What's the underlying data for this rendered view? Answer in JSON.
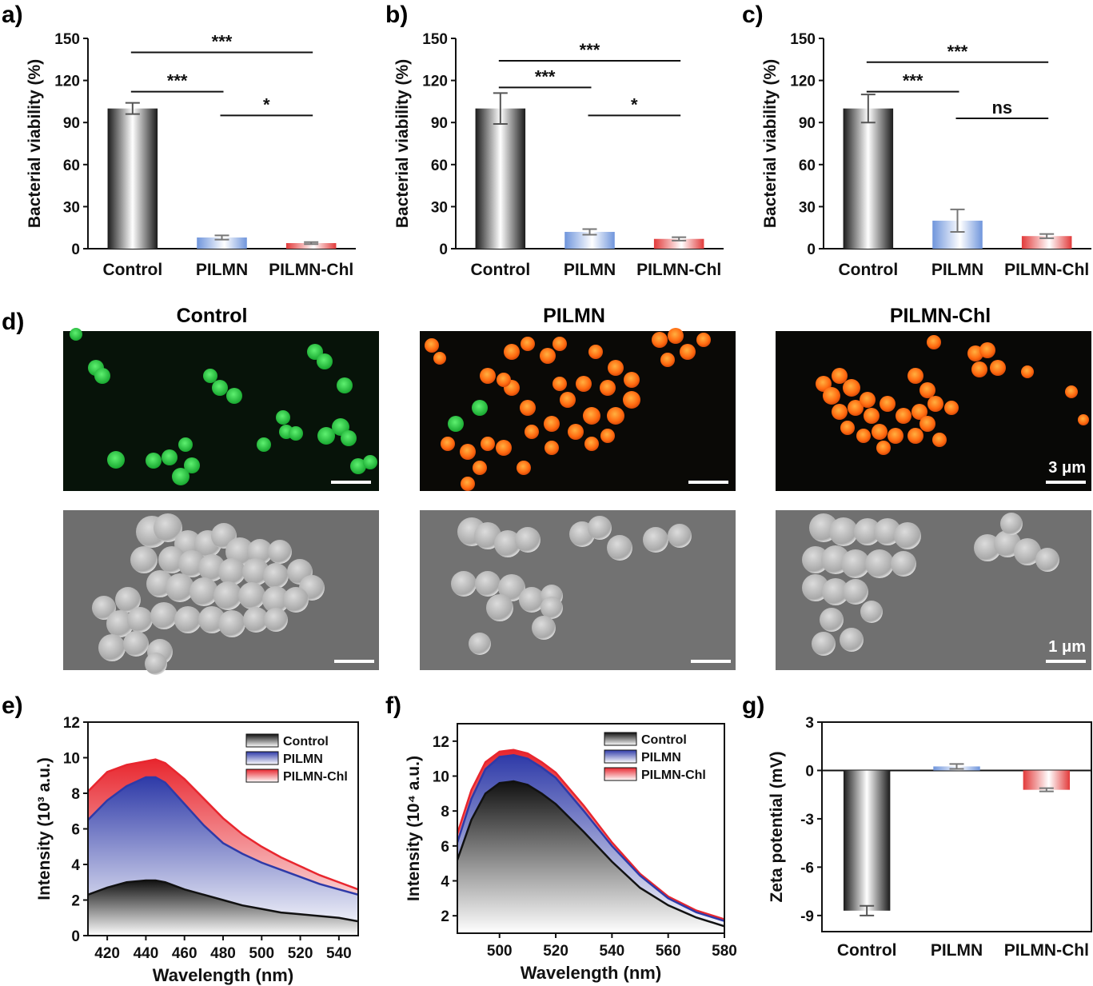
{
  "panel_letters": [
    "a)",
    "b)",
    "c)",
    "d)",
    "e)",
    "f)",
    "g)"
  ],
  "colors": {
    "control": "#111111",
    "pilmn": "#2e3aa8",
    "pilmn_chl": "#e8262e",
    "bar_pilmn": "#9bb8e8",
    "bar_chl": "#ec6a6a",
    "fluor_green": "#2fc74a",
    "fluor_orange": "#ff7a12",
    "sem_gray": "#6f6f6f"
  },
  "chart_data": [
    {
      "id": "a",
      "type": "bar",
      "categories": [
        "Control",
        "PILMN",
        "PILMN-Chl"
      ],
      "values": [
        100,
        8,
        4
      ],
      "errors": [
        4,
        1.5,
        0.7
      ],
      "ylabel": "Bacterial viability (%)",
      "ylim": [
        0,
        150
      ],
      "yticks": [
        0,
        30,
        60,
        90,
        120,
        150
      ],
      "significance": [
        {
          "from": 0,
          "to": 2,
          "label": "***",
          "level": 140
        },
        {
          "from": 0,
          "to": 1,
          "label": "***",
          "level": 112
        },
        {
          "from": 1,
          "to": 2,
          "label": "*",
          "level": 95
        }
      ]
    },
    {
      "id": "b",
      "type": "bar",
      "categories": [
        "Control",
        "PILMN",
        "PILMN-Chl"
      ],
      "values": [
        100,
        12,
        7
      ],
      "errors": [
        11,
        2,
        1.2
      ],
      "ylabel": "Bacterial viability (%)",
      "ylim": [
        0,
        150
      ],
      "yticks": [
        0,
        30,
        60,
        90,
        120,
        150
      ],
      "significance": [
        {
          "from": 0,
          "to": 2,
          "label": "***",
          "level": 134
        },
        {
          "from": 0,
          "to": 1,
          "label": "***",
          "level": 115
        },
        {
          "from": 1,
          "to": 2,
          "label": "*",
          "level": 95
        }
      ]
    },
    {
      "id": "c",
      "type": "bar",
      "categories": [
        "Control",
        "PILMN",
        "PILMN-Chl"
      ],
      "values": [
        100,
        20,
        9
      ],
      "errors": [
        10,
        8,
        1.5
      ],
      "ylabel": "Bacterial viability (%)",
      "ylim": [
        0,
        150
      ],
      "yticks": [
        0,
        30,
        60,
        90,
        120,
        150
      ],
      "significance": [
        {
          "from": 0,
          "to": 2,
          "label": "***",
          "level": 133
        },
        {
          "from": 0,
          "to": 1,
          "label": "***",
          "level": 112
        },
        {
          "from": 1,
          "to": 2,
          "label": "ns",
          "level": 93
        }
      ]
    },
    {
      "id": "e",
      "type": "area",
      "xlabel": "Wavelength (nm)",
      "ylabel": "Intensity (10³ a.u.)",
      "xlim": [
        410,
        550
      ],
      "ylim": [
        0,
        12
      ],
      "xticks": [
        420,
        440,
        460,
        480,
        500,
        520,
        540
      ],
      "yticks": [
        0,
        2,
        4,
        6,
        8,
        10,
        12
      ],
      "legend": "top-right",
      "x": [
        410,
        420,
        430,
        440,
        445,
        450,
        460,
        470,
        480,
        490,
        500,
        510,
        520,
        530,
        540,
        550
      ],
      "series": [
        {
          "name": "PILMN-Chl",
          "values": [
            8.1,
            9.2,
            9.6,
            9.8,
            9.9,
            9.7,
            8.8,
            7.7,
            6.6,
            5.7,
            5.0,
            4.4,
            3.9,
            3.4,
            3.0,
            2.6
          ]
        },
        {
          "name": "PILMN",
          "values": [
            6.5,
            7.6,
            8.4,
            8.9,
            8.9,
            8.6,
            7.4,
            6.2,
            5.2,
            4.6,
            4.1,
            3.7,
            3.3,
            2.9,
            2.6,
            2.3
          ]
        },
        {
          "name": "Control",
          "values": [
            2.3,
            2.7,
            3.0,
            3.1,
            3.1,
            3.0,
            2.6,
            2.3,
            2.0,
            1.7,
            1.5,
            1.3,
            1.2,
            1.1,
            1.0,
            0.8
          ]
        }
      ]
    },
    {
      "id": "f",
      "type": "area",
      "xlabel": "Wavelength (nm)",
      "ylabel": "Intensity (10⁴ a.u.)",
      "xlim": [
        485,
        580
      ],
      "ylim": [
        1,
        13
      ],
      "xticks": [
        500,
        520,
        540,
        560,
        580
      ],
      "yticks": [
        2,
        4,
        6,
        8,
        10,
        12
      ],
      "legend": "top-right",
      "x": [
        485,
        490,
        495,
        500,
        505,
        510,
        515,
        520,
        530,
        540,
        550,
        560,
        570,
        580
      ],
      "series": [
        {
          "name": "PILMN-Chl",
          "values": [
            6.7,
            9.2,
            10.8,
            11.4,
            11.5,
            11.3,
            10.8,
            10.2,
            8.3,
            6.2,
            4.4,
            3.1,
            2.3,
            1.8
          ]
        },
        {
          "name": "PILMN",
          "values": [
            6.2,
            8.7,
            10.4,
            11.1,
            11.2,
            11.0,
            10.5,
            9.9,
            8.0,
            6.0,
            4.3,
            3.0,
            2.2,
            1.7
          ]
        },
        {
          "name": "Control",
          "values": [
            5.2,
            7.5,
            9.0,
            9.6,
            9.7,
            9.5,
            9.0,
            8.4,
            6.8,
            5.1,
            3.6,
            2.6,
            1.9,
            1.4
          ]
        }
      ]
    },
    {
      "id": "g",
      "type": "bar",
      "categories": [
        "Control",
        "PILMN",
        "PILMN-Chl"
      ],
      "values": [
        -8.7,
        0.25,
        -1.2
      ],
      "errors": [
        0.3,
        0.15,
        0.1
      ],
      "ylabel": "Zeta potential (mV)",
      "ylim": [
        -10,
        3
      ],
      "yticks": [
        -9,
        -6,
        -3,
        0,
        3
      ]
    }
  ],
  "micrographs": {
    "titles": [
      "Control",
      "PILMN",
      "PILMN-Chl"
    ],
    "scale_fluor": "3 μm",
    "scale_sem": "1 μm"
  }
}
